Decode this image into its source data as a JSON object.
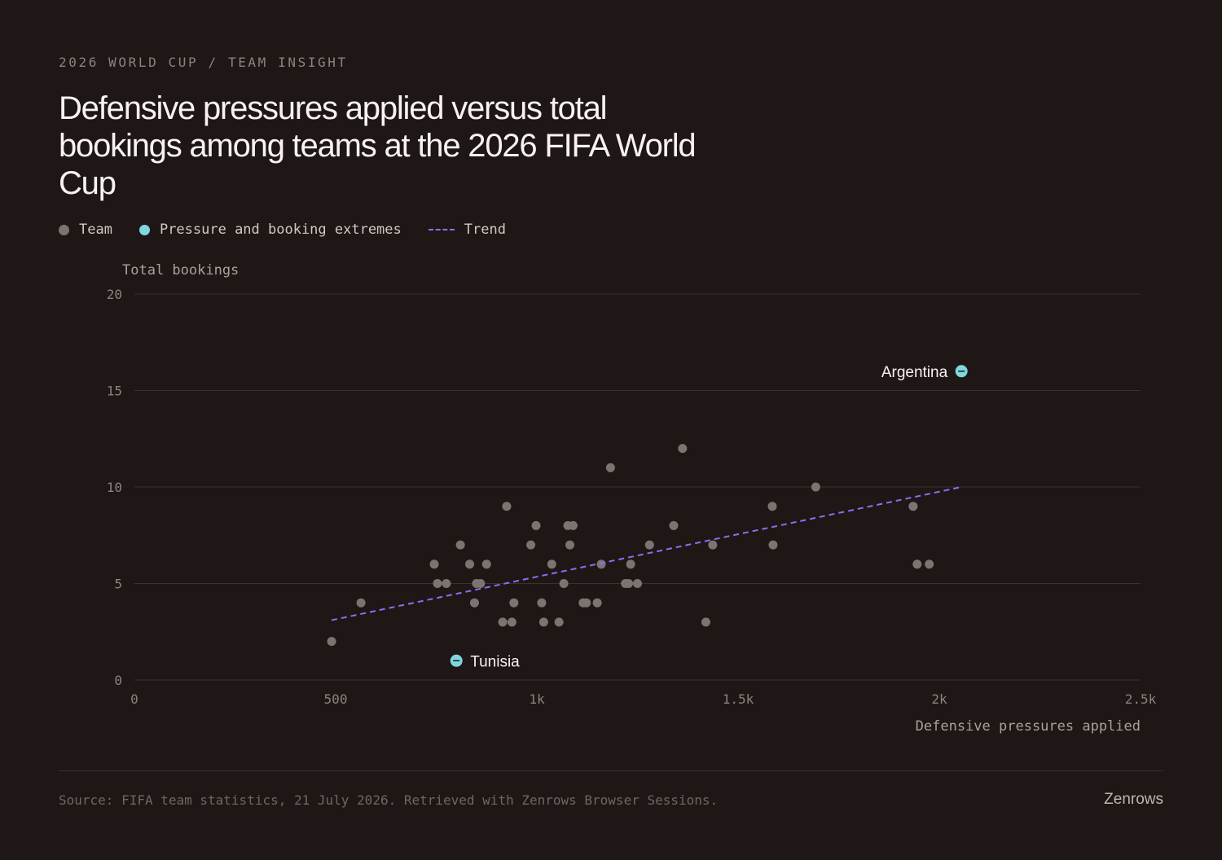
{
  "header": {
    "kicker": "2026 WORLD CUP / TEAM INSIGHT",
    "title": "Defensive pressures applied versus total bookings among teams at the 2026 FIFA World Cup"
  },
  "legend": {
    "team_label": "Team",
    "extremes_label": "Pressure and booking extremes",
    "trend_label": "Trend"
  },
  "colors": {
    "background": "#1e1715",
    "team_point": "#7b7572",
    "extreme_point": "#7fd8e0",
    "trend": "#8f6df0",
    "grid": "#3a3230"
  },
  "footer": {
    "source": "Source: FIFA team statistics, 21 July 2026. Retrieved with Zenrows Browser Sessions.",
    "brand": "Zenrows"
  },
  "chart_data": {
    "type": "scatter",
    "xlabel": "Defensive pressures applied",
    "ylabel": "Total bookings",
    "xlim": [
      0,
      2500
    ],
    "ylim": [
      0,
      20
    ],
    "x_ticks": [
      0,
      500,
      1000,
      1500,
      2000,
      2500
    ],
    "x_tick_labels": [
      "0",
      "500",
      "1k",
      "1.5k",
      "2k",
      "2.5k"
    ],
    "y_ticks": [
      0,
      5,
      10,
      15,
      20
    ],
    "y_tick_labels": [
      "0",
      "5",
      "10",
      "15",
      "20"
    ],
    "grid": "horizontal",
    "legend_position": "top-left",
    "series": [
      {
        "name": "Team",
        "points": [
          {
            "x": 490,
            "y": 2
          },
          {
            "x": 563,
            "y": 4
          },
          {
            "x": 745,
            "y": 6
          },
          {
            "x": 753,
            "y": 5
          },
          {
            "x": 775,
            "y": 5
          },
          {
            "x": 810,
            "y": 7
          },
          {
            "x": 833,
            "y": 6
          },
          {
            "x": 845,
            "y": 4
          },
          {
            "x": 850,
            "y": 5
          },
          {
            "x": 860,
            "y": 5
          },
          {
            "x": 875,
            "y": 6
          },
          {
            "x": 915,
            "y": 3
          },
          {
            "x": 925,
            "y": 9
          },
          {
            "x": 938,
            "y": 3
          },
          {
            "x": 943,
            "y": 4
          },
          {
            "x": 985,
            "y": 7
          },
          {
            "x": 998,
            "y": 8
          },
          {
            "x": 1012,
            "y": 4
          },
          {
            "x": 1017,
            "y": 3
          },
          {
            "x": 1037,
            "y": 6
          },
          {
            "x": 1055,
            "y": 3
          },
          {
            "x": 1067,
            "y": 5
          },
          {
            "x": 1077,
            "y": 8
          },
          {
            "x": 1082,
            "y": 7
          },
          {
            "x": 1090,
            "y": 8
          },
          {
            "x": 1115,
            "y": 4
          },
          {
            "x": 1123,
            "y": 4
          },
          {
            "x": 1150,
            "y": 4
          },
          {
            "x": 1160,
            "y": 6
          },
          {
            "x": 1183,
            "y": 11
          },
          {
            "x": 1220,
            "y": 5
          },
          {
            "x": 1228,
            "y": 5
          },
          {
            "x": 1233,
            "y": 6
          },
          {
            "x": 1250,
            "y": 5
          },
          {
            "x": 1280,
            "y": 7
          },
          {
            "x": 1340,
            "y": 8
          },
          {
            "x": 1362,
            "y": 12
          },
          {
            "x": 1420,
            "y": 3
          },
          {
            "x": 1437,
            "y": 7
          },
          {
            "x": 1585,
            "y": 9
          },
          {
            "x": 1587,
            "y": 7
          },
          {
            "x": 1693,
            "y": 10
          },
          {
            "x": 1935,
            "y": 9
          },
          {
            "x": 1945,
            "y": 6
          },
          {
            "x": 1975,
            "y": 6
          }
        ]
      },
      {
        "name": "Pressure and booking extremes",
        "points": [
          {
            "label": "Argentina",
            "x": 2055,
            "y": 16
          },
          {
            "label": "Tunisia",
            "x": 800,
            "y": 1
          }
        ]
      }
    ],
    "trend": {
      "name": "Trend",
      "x": [
        490,
        2055
      ],
      "y": [
        3.1,
        10.0
      ]
    }
  }
}
